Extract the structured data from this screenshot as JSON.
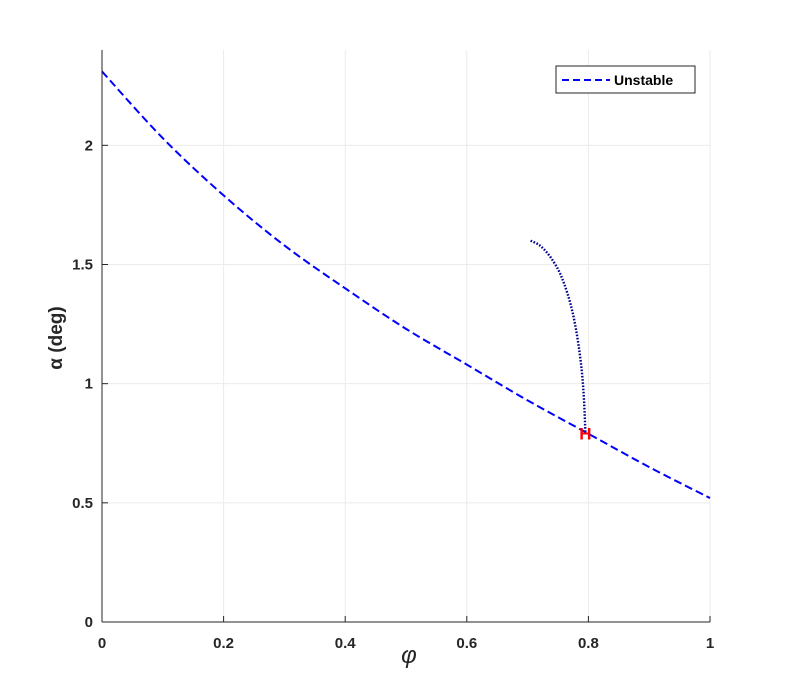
{
  "chart_data": {
    "type": "line",
    "title": "",
    "xlabel": "φ",
    "ylabel": "α (deg)",
    "xlim": [
      0,
      1
    ],
    "ylim": [
      0,
      2.4
    ],
    "xticks": [
      0,
      0.2,
      0.4,
      0.6,
      0.8,
      1
    ],
    "xtick_labels": [
      "0",
      "0.2",
      "0.4",
      "0.6",
      "0.8",
      "1"
    ],
    "yticks": [
      0,
      0.5,
      1,
      1.5,
      2
    ],
    "ytick_labels": [
      "0",
      "0.5",
      "1",
      "1.5",
      "2"
    ],
    "grid": true,
    "legend_position": "top-right",
    "series": [
      {
        "name": "Unstable",
        "style": "dashed",
        "color": "#0000FF",
        "x": [
          0,
          0.1,
          0.2,
          0.3,
          0.4,
          0.5,
          0.6,
          0.7,
          0.8,
          0.9,
          1.0
        ],
        "y": [
          2.31,
          2.03,
          1.79,
          1.58,
          1.4,
          1.23,
          1.08,
          0.93,
          0.79,
          0.65,
          0.52
        ]
      },
      {
        "style": "dotted",
        "color": "#00008B",
        "x": [
          0.705,
          0.72,
          0.735,
          0.75,
          0.76,
          0.77,
          0.778,
          0.785,
          0.79,
          0.793,
          0.795
        ],
        "y": [
          1.6,
          1.58,
          1.54,
          1.48,
          1.42,
          1.34,
          1.25,
          1.14,
          1.03,
          0.92,
          0.8
        ]
      }
    ],
    "annotations": [
      {
        "text": "H",
        "x": 0.795,
        "y": 0.795,
        "color": "#FF0000"
      }
    ]
  }
}
